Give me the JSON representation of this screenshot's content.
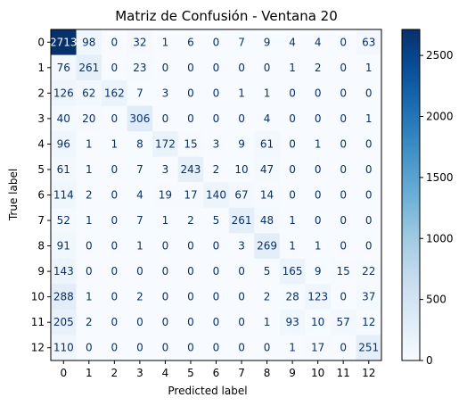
{
  "chart_data": {
    "type": "heatmap",
    "title": "Matriz de Confusión - Ventana 20",
    "xlabel": "Predicted label",
    "ylabel": "True label",
    "x_categories": [
      "0",
      "1",
      "2",
      "3",
      "4",
      "5",
      "6",
      "7",
      "8",
      "9",
      "10",
      "11",
      "12"
    ],
    "y_categories": [
      "0",
      "1",
      "2",
      "3",
      "4",
      "5",
      "6",
      "7",
      "8",
      "9",
      "10",
      "11",
      "12"
    ],
    "values": [
      [
        2713,
        98,
        0,
        32,
        1,
        6,
        0,
        7,
        9,
        4,
        4,
        0,
        63
      ],
      [
        76,
        261,
        0,
        23,
        0,
        0,
        0,
        0,
        0,
        1,
        2,
        0,
        1
      ],
      [
        126,
        62,
        162,
        7,
        3,
        0,
        0,
        1,
        1,
        0,
        0,
        0,
        0
      ],
      [
        40,
        20,
        0,
        306,
        0,
        0,
        0,
        0,
        4,
        0,
        0,
        0,
        1
      ],
      [
        96,
        1,
        1,
        8,
        172,
        15,
        3,
        9,
        61,
        0,
        1,
        0,
        0
      ],
      [
        61,
        1,
        0,
        7,
        3,
        243,
        2,
        10,
        47,
        0,
        0,
        0,
        0
      ],
      [
        114,
        2,
        0,
        4,
        19,
        17,
        140,
        67,
        14,
        0,
        0,
        0,
        0
      ],
      [
        52,
        1,
        0,
        7,
        1,
        2,
        5,
        261,
        48,
        1,
        0,
        0,
        0
      ],
      [
        91,
        0,
        0,
        1,
        0,
        0,
        0,
        3,
        269,
        1,
        1,
        0,
        0
      ],
      [
        143,
        0,
        0,
        0,
        0,
        0,
        0,
        0,
        5,
        165,
        9,
        15,
        22
      ],
      [
        288,
        1,
        0,
        2,
        0,
        0,
        0,
        0,
        2,
        28,
        123,
        0,
        37
      ],
      [
        205,
        2,
        0,
        0,
        0,
        0,
        0,
        0,
        1,
        93,
        10,
        57,
        12
      ],
      [
        110,
        0,
        0,
        0,
        0,
        0,
        0,
        0,
        0,
        1,
        17,
        0,
        251
      ]
    ],
    "colormap": "Blues",
    "colorbar": {
      "min": 0,
      "max": 2713,
      "ticks": [
        0,
        500,
        1000,
        1500,
        2000,
        2500
      ]
    },
    "grid": false
  }
}
